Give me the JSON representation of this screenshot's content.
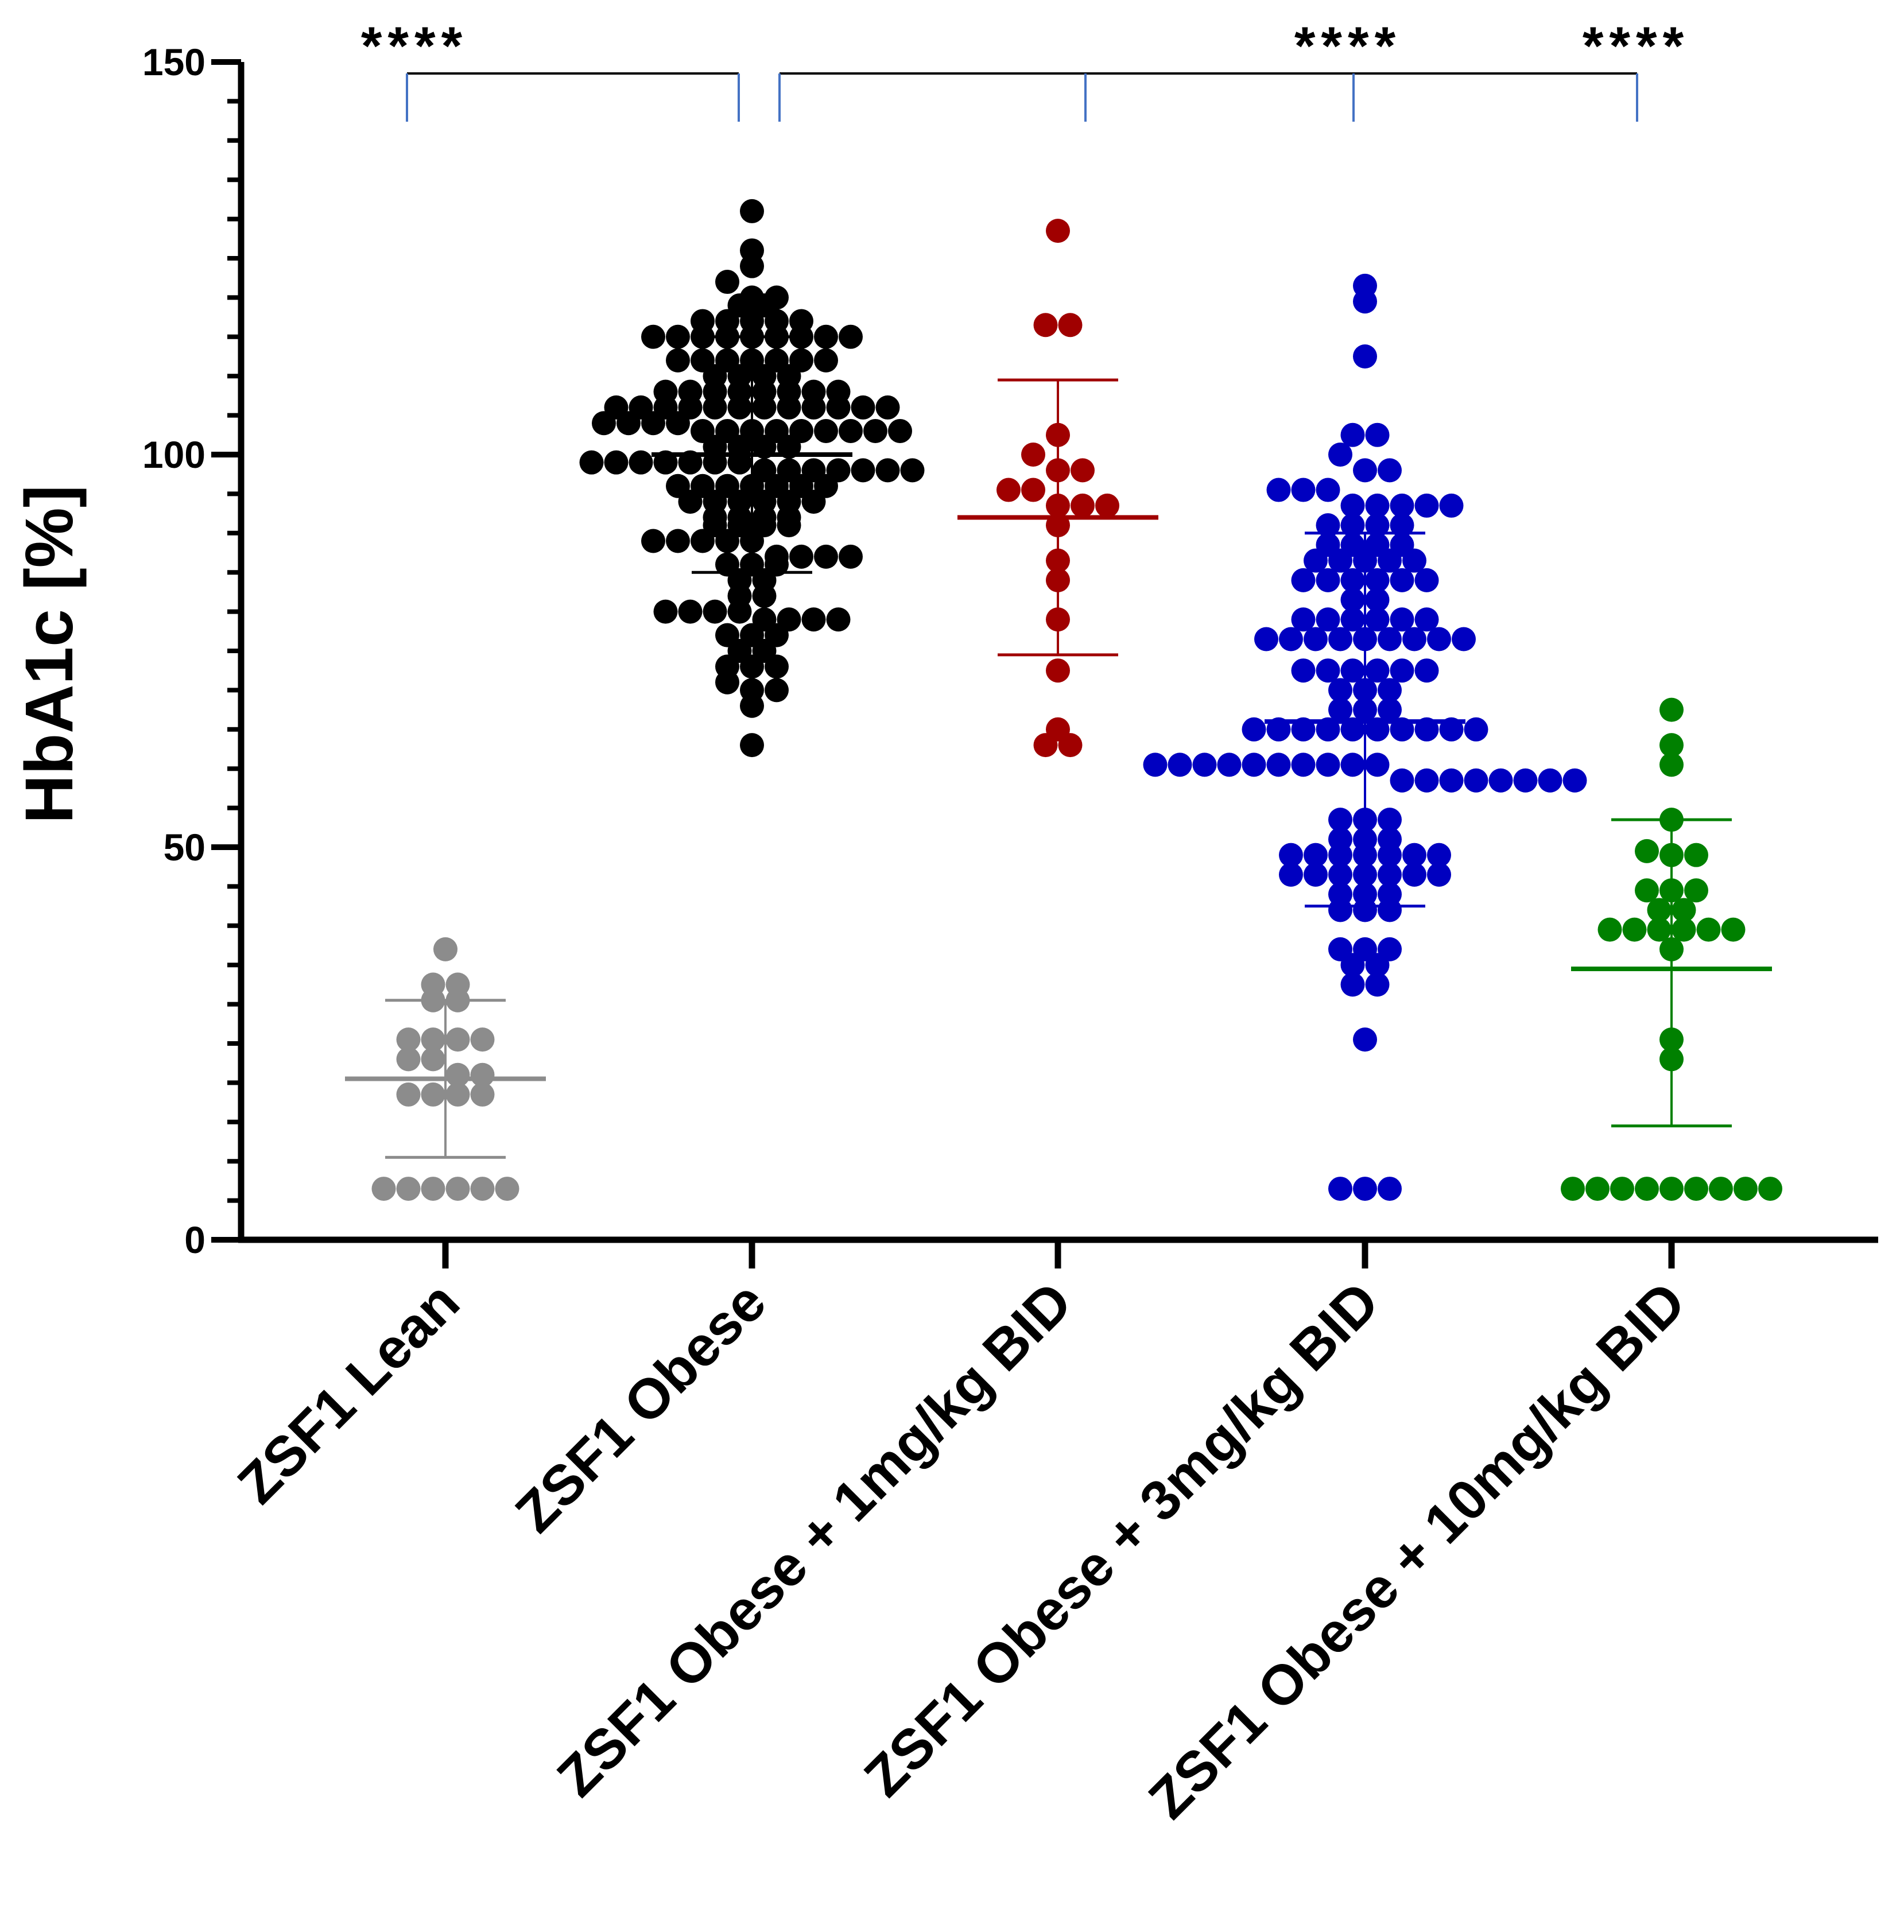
{
  "chart_data": {
    "type": "scatter",
    "ylabel": "HbA1c [%]",
    "xlabel": "",
    "ylim": [
      0,
      150
    ],
    "yticks": [
      0,
      50,
      100,
      150
    ],
    "ytick_labels": [
      "0",
      "50",
      "100",
      "150"
    ],
    "y_minor_step": 5,
    "categories": [
      "ZSF1 Lean",
      "ZSF1 Obese",
      "ZSF1 Obese + 1mg/kg BID",
      "ZSF1 Obese + 3mg/kg BID",
      "ZSF1 Obese + 10mg/kg BID"
    ],
    "series": [
      {
        "name": "ZSF1 Lean",
        "color": "#8c8c8c",
        "mean": 20.5,
        "sd_low": 10.5,
        "sd_high": 30.5,
        "values": [
          37,
          32.5,
          32.5,
          30.5,
          30.5,
          25.5,
          25.5,
          25.5,
          25.5,
          23,
          23,
          21,
          21,
          18.5,
          18.5,
          18.5,
          18.5,
          6.5,
          6.5,
          6.5,
          6.5,
          6.5,
          6.5
        ]
      },
      {
        "name": "ZSF1 Obese",
        "color": "#000000",
        "mean": 100,
        "sd_low": 85,
        "sd_high": 115,
        "values": [
          131,
          126,
          124,
          122,
          120,
          120,
          119,
          119,
          117,
          117,
          117,
          117,
          117,
          115,
          115,
          115,
          115,
          115,
          115,
          115,
          115,
          115,
          112,
          112,
          112,
          112,
          112,
          112,
          112,
          110,
          110,
          110,
          110,
          108,
          108,
          108,
          108,
          108,
          108,
          108,
          108,
          106,
          106,
          106,
          106,
          106,
          106,
          106,
          106,
          106,
          106,
          106,
          106,
          104,
          104,
          104,
          104,
          103,
          103,
          103,
          103,
          103,
          103,
          103,
          103,
          103,
          101,
          101,
          101,
          101,
          99,
          99,
          99,
          99,
          99,
          99,
          99,
          98,
          98,
          98,
          98,
          98,
          98,
          98,
          96,
          96,
          96,
          96,
          96,
          96,
          96,
          94,
          94,
          94,
          94,
          94,
          94,
          92,
          92,
          92,
          92,
          91,
          91,
          91,
          91,
          89,
          89,
          89,
          89,
          89,
          87,
          87,
          87,
          87,
          86,
          86,
          86,
          84,
          84,
          82,
          82,
          80,
          80,
          80,
          80,
          79,
          79,
          79,
          79,
          77,
          77,
          77,
          75,
          75,
          73,
          73,
          73,
          71,
          70,
          70,
          68,
          63
        ]
      },
      {
        "name": "ZSF1 Obese + 1mg/kg BID",
        "color": "#a00000",
        "mean": 92,
        "sd_low": 74.5,
        "sd_high": 109.5,
        "values": [
          128.5,
          116.5,
          116.5,
          102.5,
          100,
          98,
          98,
          95.5,
          95.5,
          93.5,
          93.5,
          93.5,
          91,
          86.5,
          84,
          79,
          72.5,
          65,
          63,
          63
        ]
      },
      {
        "name": "ZSF1 Obese + 3mg/kg BID",
        "color": "#0000c0",
        "mean": 66,
        "sd_low": 42.5,
        "sd_high": 90,
        "values": [
          121.5,
          119.5,
          112.5,
          102.5,
          102.5,
          100,
          98,
          98,
          95.5,
          95.5,
          95.5,
          93.5,
          93.5,
          93.5,
          93.5,
          93.5,
          91,
          91,
          91,
          91,
          88.5,
          88.5,
          88.5,
          88.5,
          86.5,
          86.5,
          86.5,
          86.5,
          86.5,
          84,
          84,
          84,
          84,
          84,
          84,
          81.5,
          81.5,
          79,
          79,
          79,
          79,
          79,
          79,
          76.5,
          76.5,
          76.5,
          76.5,
          76.5,
          76.5,
          76.5,
          76.5,
          76.5,
          72.5,
          72.5,
          72.5,
          72.5,
          72.5,
          72.5,
          70,
          70,
          70,
          67.5,
          67.5,
          67.5,
          65,
          65,
          65,
          65,
          65,
          65,
          65,
          65,
          65,
          65,
          60.5,
          60.5,
          60.5,
          60.5,
          60.5,
          60.5,
          60.5,
          60.5,
          60.5,
          60.5,
          58.5,
          58.5,
          58.5,
          58.5,
          58.5,
          58.5,
          58.5,
          58.5,
          53.5,
          53.5,
          53.5,
          51,
          51,
          51,
          49,
          49,
          49,
          49,
          49,
          49,
          49,
          46.5,
          46.5,
          46.5,
          46.5,
          46.5,
          46.5,
          46.5,
          44,
          44,
          44,
          42,
          42,
          42,
          37,
          37,
          37,
          35,
          35,
          32.5,
          32.5,
          25.5,
          6.5,
          6.5,
          6.5
        ]
      },
      {
        "name": "ZSF1 Obese + 10mg/kg BID",
        "color": "#008000",
        "mean": 34.5,
        "sd_low": 14.5,
        "sd_high": 53.5,
        "values": [
          67.5,
          63,
          60.5,
          53.5,
          49.5,
          49,
          49,
          44.5,
          44.5,
          44.5,
          42,
          42,
          39.5,
          39.5,
          39.5,
          39.5,
          39.5,
          39.5,
          37,
          25.5,
          23,
          6.5,
          6.5,
          6.5,
          6.5,
          6.5,
          6.5,
          6.5,
          6.5,
          6.5
        ]
      }
    ],
    "significance": [
      {
        "label": "****",
        "from": 0,
        "to": 1,
        "drops": [
          0,
          1
        ],
        "star_over": 0
      },
      {
        "label": "****",
        "from": 1,
        "to": 4,
        "drops": [
          1,
          2,
          3,
          4
        ],
        "star_over": 3
      },
      {
        "label": "****",
        "from": 1,
        "to": 4,
        "drops": [],
        "star_over": 4
      }
    ],
    "bracket_color": "#4472c4"
  }
}
